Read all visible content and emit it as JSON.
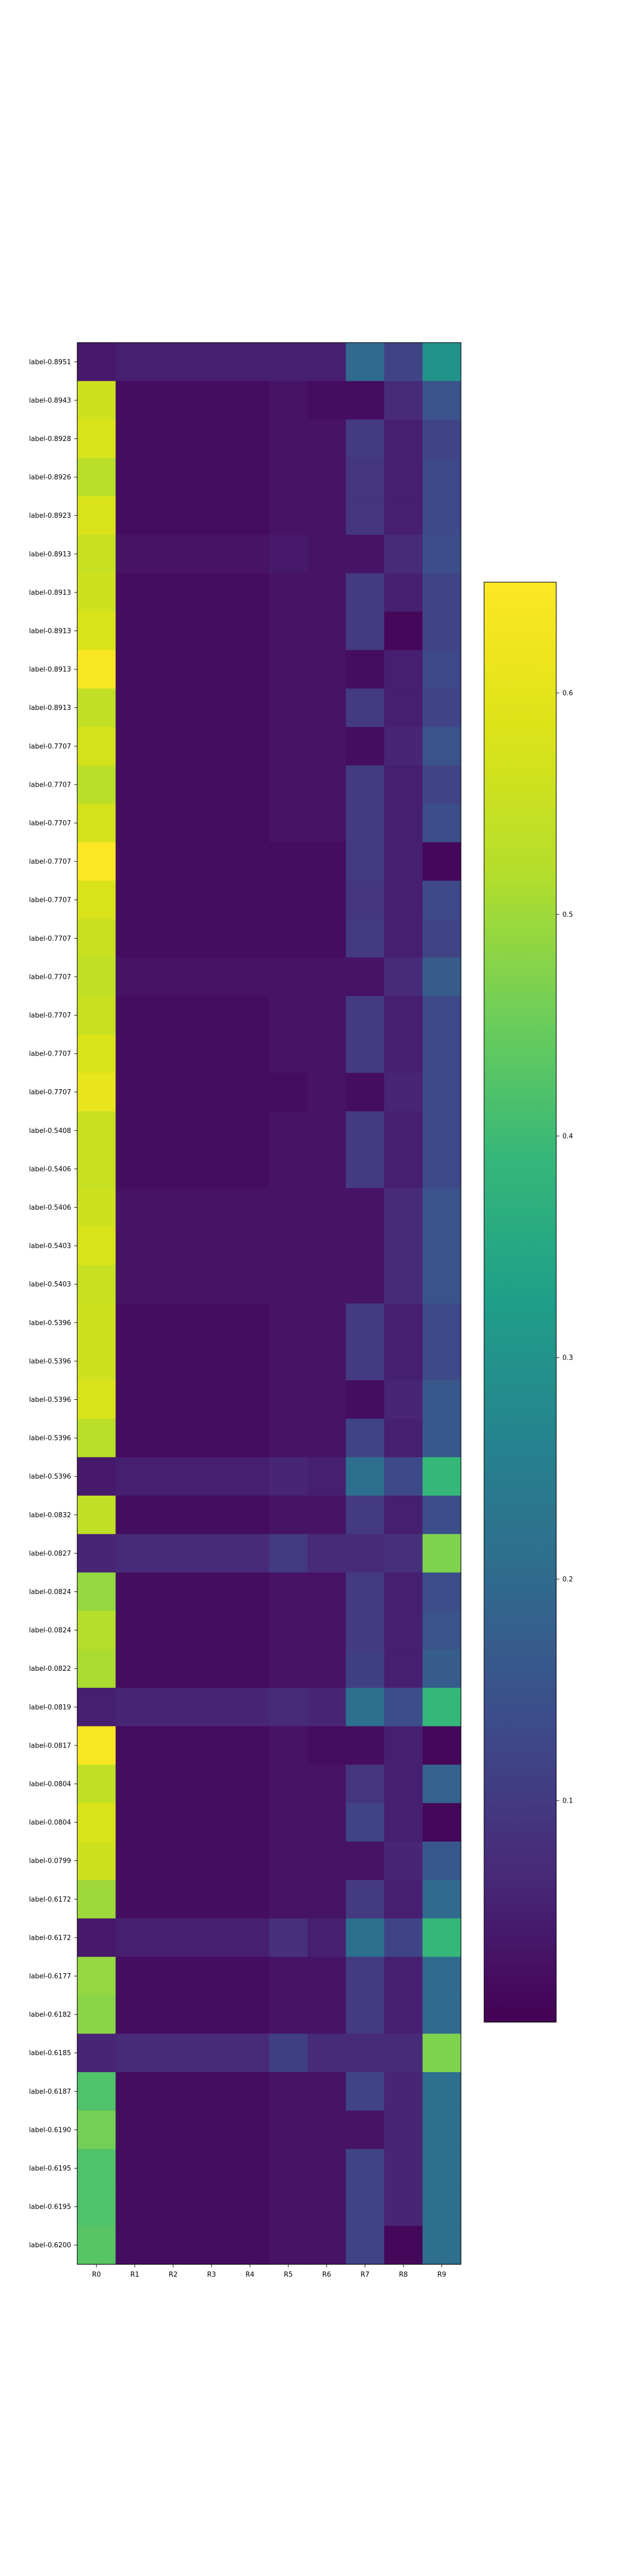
{
  "chart_data": {
    "type": "heatmap",
    "title": "",
    "xlabel": "",
    "ylabel": "",
    "colormap": "viridis",
    "x_labels": [
      "R0",
      "R1",
      "R2",
      "R3",
      "R4",
      "R5",
      "R6",
      "R7",
      "R8",
      "R9"
    ],
    "y_labels": [
      "label-0.8951",
      "label-0.8943",
      "label-0.8928",
      "label-0.8926",
      "label-0.8923",
      "label-0.8913",
      "label-0.8913",
      "label-0.8913",
      "label-0.8913",
      "label-0.8913",
      "label-0.7707",
      "label-0.7707",
      "label-0.7707",
      "label-0.7707",
      "label-0.7707",
      "label-0.7707",
      "label-0.7707",
      "label-0.7707",
      "label-0.7707",
      "label-0.7707",
      "label-0.5408",
      "label-0.5406",
      "label-0.5406",
      "label-0.5403",
      "label-0.5403",
      "label-0.5396",
      "label-0.5396",
      "label-0.5396",
      "label-0.5396",
      "label-0.5396",
      "label-0.0832",
      "label-0.0827",
      "label-0.0824",
      "label-0.0824",
      "label-0.0822",
      "label-0.0819",
      "label-0.0817",
      "label-0.0804",
      "label-0.0804",
      "label-0.0799",
      "label-0.6172",
      "label-0.6172",
      "label-0.6177",
      "label-0.6182",
      "label-0.6185",
      "label-0.6187",
      "label-0.6190",
      "label-0.6195",
      "label-0.6195",
      "label-0.6200"
    ],
    "colorbar": {
      "vmin": 0.0,
      "vmax": 0.65,
      "ticks": [
        0.1,
        0.2,
        0.3,
        0.4,
        0.5,
        0.6
      ],
      "tick_labels": [
        "0.1",
        "0.2",
        "0.3",
        "0.4",
        "0.5",
        "0.6"
      ]
    },
    "values": [
      [
        0.04,
        0.05,
        0.05,
        0.05,
        0.05,
        0.05,
        0.05,
        0.2,
        0.12,
        0.3
      ],
      [
        0.56,
        0.02,
        0.02,
        0.02,
        0.02,
        0.03,
        0.02,
        0.02,
        0.07,
        0.15
      ],
      [
        0.58,
        0.02,
        0.02,
        0.02,
        0.02,
        0.03,
        0.03,
        0.1,
        0.05,
        0.12
      ],
      [
        0.53,
        0.02,
        0.02,
        0.02,
        0.02,
        0.03,
        0.03,
        0.09,
        0.05,
        0.13
      ],
      [
        0.58,
        0.02,
        0.02,
        0.02,
        0.02,
        0.03,
        0.03,
        0.09,
        0.05,
        0.13
      ],
      [
        0.55,
        0.03,
        0.03,
        0.03,
        0.03,
        0.04,
        0.03,
        0.03,
        0.07,
        0.14
      ],
      [
        0.56,
        0.02,
        0.02,
        0.02,
        0.02,
        0.03,
        0.03,
        0.1,
        0.05,
        0.12
      ],
      [
        0.58,
        0.02,
        0.02,
        0.02,
        0.02,
        0.03,
        0.03,
        0.1,
        0.01,
        0.12
      ],
      [
        0.64,
        0.02,
        0.02,
        0.02,
        0.02,
        0.03,
        0.03,
        0.02,
        0.05,
        0.13
      ],
      [
        0.54,
        0.02,
        0.02,
        0.02,
        0.02,
        0.03,
        0.03,
        0.1,
        0.05,
        0.12
      ],
      [
        0.57,
        0.02,
        0.02,
        0.02,
        0.02,
        0.03,
        0.03,
        0.02,
        0.06,
        0.15
      ],
      [
        0.53,
        0.02,
        0.02,
        0.02,
        0.02,
        0.03,
        0.03,
        0.1,
        0.05,
        0.12
      ],
      [
        0.57,
        0.02,
        0.02,
        0.02,
        0.02,
        0.03,
        0.03,
        0.1,
        0.05,
        0.14
      ],
      [
        0.65,
        0.02,
        0.02,
        0.02,
        0.02,
        0.02,
        0.02,
        0.1,
        0.05,
        0.01
      ],
      [
        0.58,
        0.02,
        0.02,
        0.02,
        0.02,
        0.02,
        0.02,
        0.09,
        0.05,
        0.13
      ],
      [
        0.55,
        0.02,
        0.02,
        0.02,
        0.02,
        0.02,
        0.02,
        0.1,
        0.05,
        0.12
      ],
      [
        0.54,
        0.03,
        0.03,
        0.03,
        0.03,
        0.03,
        0.03,
        0.03,
        0.07,
        0.17
      ],
      [
        0.55,
        0.02,
        0.02,
        0.02,
        0.02,
        0.03,
        0.03,
        0.1,
        0.05,
        0.13
      ],
      [
        0.58,
        0.02,
        0.02,
        0.02,
        0.02,
        0.03,
        0.03,
        0.1,
        0.05,
        0.13
      ],
      [
        0.61,
        0.02,
        0.02,
        0.02,
        0.02,
        0.02,
        0.03,
        0.02,
        0.06,
        0.13
      ],
      [
        0.55,
        0.02,
        0.02,
        0.02,
        0.02,
        0.03,
        0.03,
        0.1,
        0.05,
        0.13
      ],
      [
        0.55,
        0.02,
        0.02,
        0.02,
        0.02,
        0.03,
        0.03,
        0.1,
        0.05,
        0.13
      ],
      [
        0.56,
        0.03,
        0.03,
        0.03,
        0.03,
        0.03,
        0.03,
        0.03,
        0.07,
        0.15
      ],
      [
        0.58,
        0.03,
        0.03,
        0.03,
        0.03,
        0.03,
        0.03,
        0.03,
        0.07,
        0.15
      ],
      [
        0.55,
        0.03,
        0.03,
        0.03,
        0.03,
        0.03,
        0.03,
        0.03,
        0.07,
        0.15
      ],
      [
        0.56,
        0.02,
        0.02,
        0.02,
        0.02,
        0.03,
        0.03,
        0.1,
        0.05,
        0.13
      ],
      [
        0.56,
        0.02,
        0.02,
        0.02,
        0.02,
        0.03,
        0.03,
        0.1,
        0.05,
        0.13
      ],
      [
        0.58,
        0.02,
        0.02,
        0.02,
        0.02,
        0.03,
        0.03,
        0.02,
        0.06,
        0.16
      ],
      [
        0.53,
        0.02,
        0.02,
        0.02,
        0.02,
        0.03,
        0.03,
        0.12,
        0.05,
        0.16
      ],
      [
        0.04,
        0.05,
        0.05,
        0.05,
        0.05,
        0.06,
        0.05,
        0.21,
        0.13,
        0.39
      ],
      [
        0.54,
        0.02,
        0.02,
        0.02,
        0.02,
        0.03,
        0.03,
        0.1,
        0.05,
        0.14
      ],
      [
        0.06,
        0.07,
        0.07,
        0.07,
        0.07,
        0.1,
        0.07,
        0.07,
        0.08,
        0.47
      ],
      [
        0.49,
        0.02,
        0.02,
        0.02,
        0.02,
        0.03,
        0.03,
        0.1,
        0.05,
        0.14
      ],
      [
        0.52,
        0.02,
        0.02,
        0.02,
        0.02,
        0.03,
        0.03,
        0.1,
        0.05,
        0.15
      ],
      [
        0.51,
        0.02,
        0.02,
        0.02,
        0.02,
        0.03,
        0.03,
        0.11,
        0.05,
        0.17
      ],
      [
        0.05,
        0.06,
        0.06,
        0.06,
        0.06,
        0.07,
        0.06,
        0.21,
        0.14,
        0.39
      ],
      [
        0.64,
        0.02,
        0.02,
        0.02,
        0.02,
        0.03,
        0.02,
        0.02,
        0.05,
        0.01
      ],
      [
        0.54,
        0.02,
        0.02,
        0.02,
        0.02,
        0.03,
        0.03,
        0.09,
        0.05,
        0.18
      ],
      [
        0.58,
        0.02,
        0.02,
        0.02,
        0.02,
        0.03,
        0.03,
        0.12,
        0.05,
        0.01
      ],
      [
        0.56,
        0.02,
        0.02,
        0.02,
        0.02,
        0.03,
        0.03,
        0.03,
        0.06,
        0.16
      ],
      [
        0.5,
        0.02,
        0.02,
        0.02,
        0.02,
        0.03,
        0.03,
        0.1,
        0.05,
        0.2
      ],
      [
        0.04,
        0.05,
        0.05,
        0.05,
        0.05,
        0.08,
        0.05,
        0.21,
        0.12,
        0.39
      ],
      [
        0.49,
        0.02,
        0.02,
        0.02,
        0.02,
        0.03,
        0.03,
        0.1,
        0.05,
        0.2
      ],
      [
        0.48,
        0.02,
        0.02,
        0.02,
        0.02,
        0.03,
        0.03,
        0.1,
        0.05,
        0.2
      ],
      [
        0.06,
        0.07,
        0.07,
        0.07,
        0.07,
        0.11,
        0.07,
        0.07,
        0.07,
        0.47
      ],
      [
        0.42,
        0.02,
        0.02,
        0.02,
        0.02,
        0.03,
        0.03,
        0.12,
        0.06,
        0.21
      ],
      [
        0.46,
        0.02,
        0.02,
        0.02,
        0.02,
        0.03,
        0.03,
        0.03,
        0.06,
        0.21
      ],
      [
        0.42,
        0.02,
        0.02,
        0.02,
        0.02,
        0.03,
        0.03,
        0.12,
        0.06,
        0.21
      ],
      [
        0.42,
        0.02,
        0.02,
        0.02,
        0.02,
        0.03,
        0.03,
        0.12,
        0.06,
        0.21
      ],
      [
        0.43,
        0.02,
        0.02,
        0.02,
        0.02,
        0.03,
        0.03,
        0.12,
        0.01,
        0.21
      ]
    ]
  }
}
